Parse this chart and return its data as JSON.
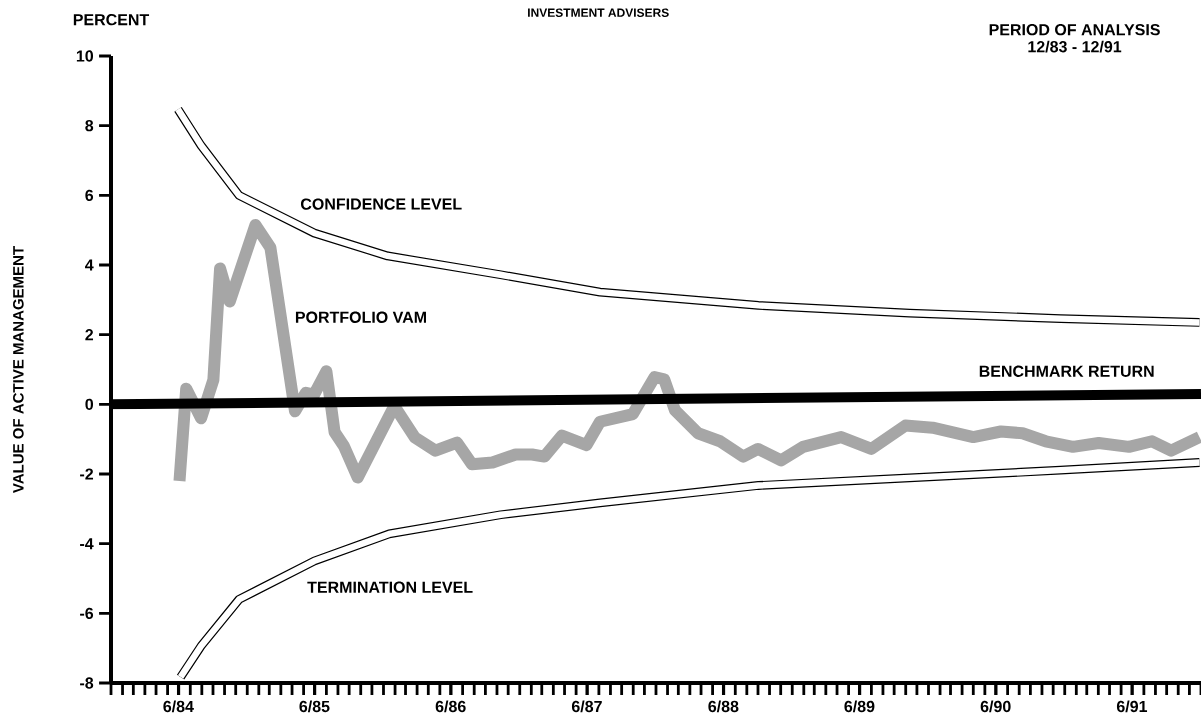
{
  "chart_data": {
    "type": "line",
    "title": "INVESTMENT ADVISERS",
    "ylabel": "VALUE OF ACTIVE MANAGEMENT",
    "annotations": [
      "PERCENT",
      "PERIOD OF ANALYSIS",
      "12/83 - 12/91"
    ],
    "xlim": [
      "1984-01-01",
      "1992-01-01"
    ],
    "xticks": [
      {
        "value": "1984-06-30",
        "label": "6/84"
      },
      {
        "value": "1985-06-30",
        "label": "6/85"
      },
      {
        "value": "1986-06-30",
        "label": "6/86"
      },
      {
        "value": "1987-06-30",
        "label": "6/87"
      },
      {
        "value": "1988-06-30",
        "label": "6/88"
      },
      {
        "value": "1989-06-30",
        "label": "6/89"
      },
      {
        "value": "1990-06-30",
        "label": "6/90"
      },
      {
        "value": "1991-06-30",
        "label": "6/91"
      }
    ],
    "ylim": [
      -8,
      10
    ],
    "yticks": [
      -8,
      -6,
      -4,
      -2,
      0,
      2,
      4,
      6,
      8,
      10
    ],
    "marker": "none",
    "series": [
      {
        "name": "CONFIDENCE LEVEL",
        "color": "#000000",
        "x": [
          "1984-06-29",
          "1984-08-30",
          "1984-12-10",
          "1985-06-29",
          "1986-01-12",
          "1986-11-11",
          "1987-08-04",
          "1988-10-02",
          "1989-11-11",
          "1990-12-21",
          "1991-12-28"
        ],
        "values": [
          8.47,
          7.43,
          6.0,
          4.92,
          4.26,
          3.72,
          3.22,
          2.84,
          2.62,
          2.46,
          2.35
        ]
      },
      {
        "name": "PORTFOLIO VAM",
        "color": "#a6a6a6",
        "x": [
          "1984-07-03",
          "1984-07-21",
          "1984-08-30",
          "1984-10-02",
          "1984-10-20",
          "1984-11-15",
          "1985-01-23",
          "1985-03-04",
          "1985-05-09",
          "1985-06-07",
          "1985-06-29",
          "1985-08-01",
          "1985-08-23",
          "1985-09-17",
          "1985-10-24",
          "1986-01-30",
          "1986-03-26",
          "1986-05-20",
          "1986-07-17",
          "1986-08-26",
          "1986-10-20",
          "1986-12-21",
          "1987-02-03",
          "1987-03-08",
          "1987-04-24",
          "1987-06-29",
          "1987-08-04",
          "1987-10-31",
          "1987-12-28",
          "1988-01-23",
          "1988-02-21",
          "1988-04-23",
          "1988-06-21",
          "1988-08-22",
          "1988-10-01",
          "1988-12-02",
          "1989-01-30",
          "1989-05-12",
          "1989-08-01",
          "1989-10-31",
          "1990-01-12",
          "1990-05-01",
          "1990-07-14",
          "1990-09-10",
          "1990-11-11",
          "1991-01-23",
          "1991-04-02",
          "1991-06-22",
          "1991-08-23",
          "1991-10-13",
          "1991-12-28"
        ],
        "values": [
          -2.2,
          0.45,
          -0.4,
          0.7,
          3.9,
          2.95,
          5.15,
          4.5,
          -0.2,
          0.33,
          0.28,
          0.95,
          -0.8,
          -1.2,
          -2.1,
          -0.05,
          -0.95,
          -1.33,
          -1.1,
          -1.72,
          -1.67,
          -1.44,
          -1.44,
          -1.5,
          -0.9,
          -1.17,
          -0.5,
          -0.28,
          0.78,
          0.72,
          -0.17,
          -0.83,
          -1.06,
          -1.5,
          -1.28,
          -1.61,
          -1.22,
          -0.94,
          -1.28,
          -0.61,
          -0.67,
          -0.94,
          -0.78,
          -0.83,
          -1.06,
          -1.22,
          -1.11,
          -1.22,
          -1.06,
          -1.33,
          -0.94
        ]
      },
      {
        "name": "BENCHMARK RETURN",
        "color": "#000000",
        "x": [
          "1984-01-01",
          "1992-01-01"
        ],
        "values": [
          0.0,
          0.3
        ]
      },
      {
        "name": "TERMINATION LEVEL",
        "color": "#000000",
        "x": [
          "1984-07-06",
          "1984-08-30",
          "1984-12-10",
          "1985-06-29",
          "1986-01-16",
          "1986-11-11",
          "1987-08-04",
          "1988-10-02",
          "1989-11-11",
          "1990-12-21",
          "1991-12-28"
        ],
        "values": [
          -7.83,
          -6.94,
          -5.6,
          -4.5,
          -3.72,
          -3.17,
          -2.83,
          -2.33,
          -2.11,
          -1.89,
          -1.67
        ]
      }
    ]
  }
}
